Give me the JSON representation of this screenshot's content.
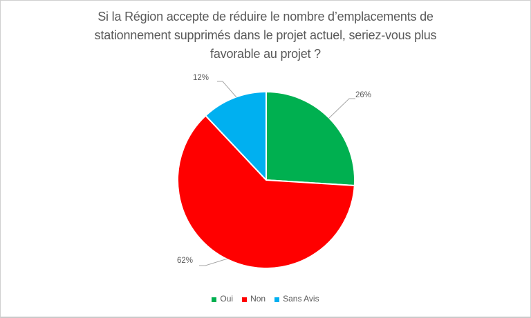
{
  "chart_data": {
    "type": "pie",
    "title": "Si la Région accepte de réduire le nombre d’emplacements de stationnement supprimés dans le projet actuel, seriez-vous plus favorable au projet ?",
    "title_lines": [
      "Si la Région accepte de réduire le nombre d’emplacements de",
      "stationnement supprimés dans le projet actuel, seriez-vous plus",
      "favorable au projet ?"
    ],
    "labels": [
      "Oui",
      "Non",
      "Sans Avis"
    ],
    "values": [
      26,
      62,
      12
    ],
    "unit": "%",
    "data_labels": [
      "26%",
      "62%",
      "12%"
    ],
    "colors": [
      "#00B050",
      "#FF0000",
      "#00B0F0"
    ],
    "start_angle_deg": 0,
    "direction": "clockwise",
    "legend_position": "bottom",
    "legend_entries": [
      "Oui",
      "Non",
      "Sans Avis"
    ],
    "title_color": "#595959",
    "label_color": "#595959",
    "leader_line_color": "#A6A6A6",
    "slice_border_color": "#FFFFFF"
  }
}
